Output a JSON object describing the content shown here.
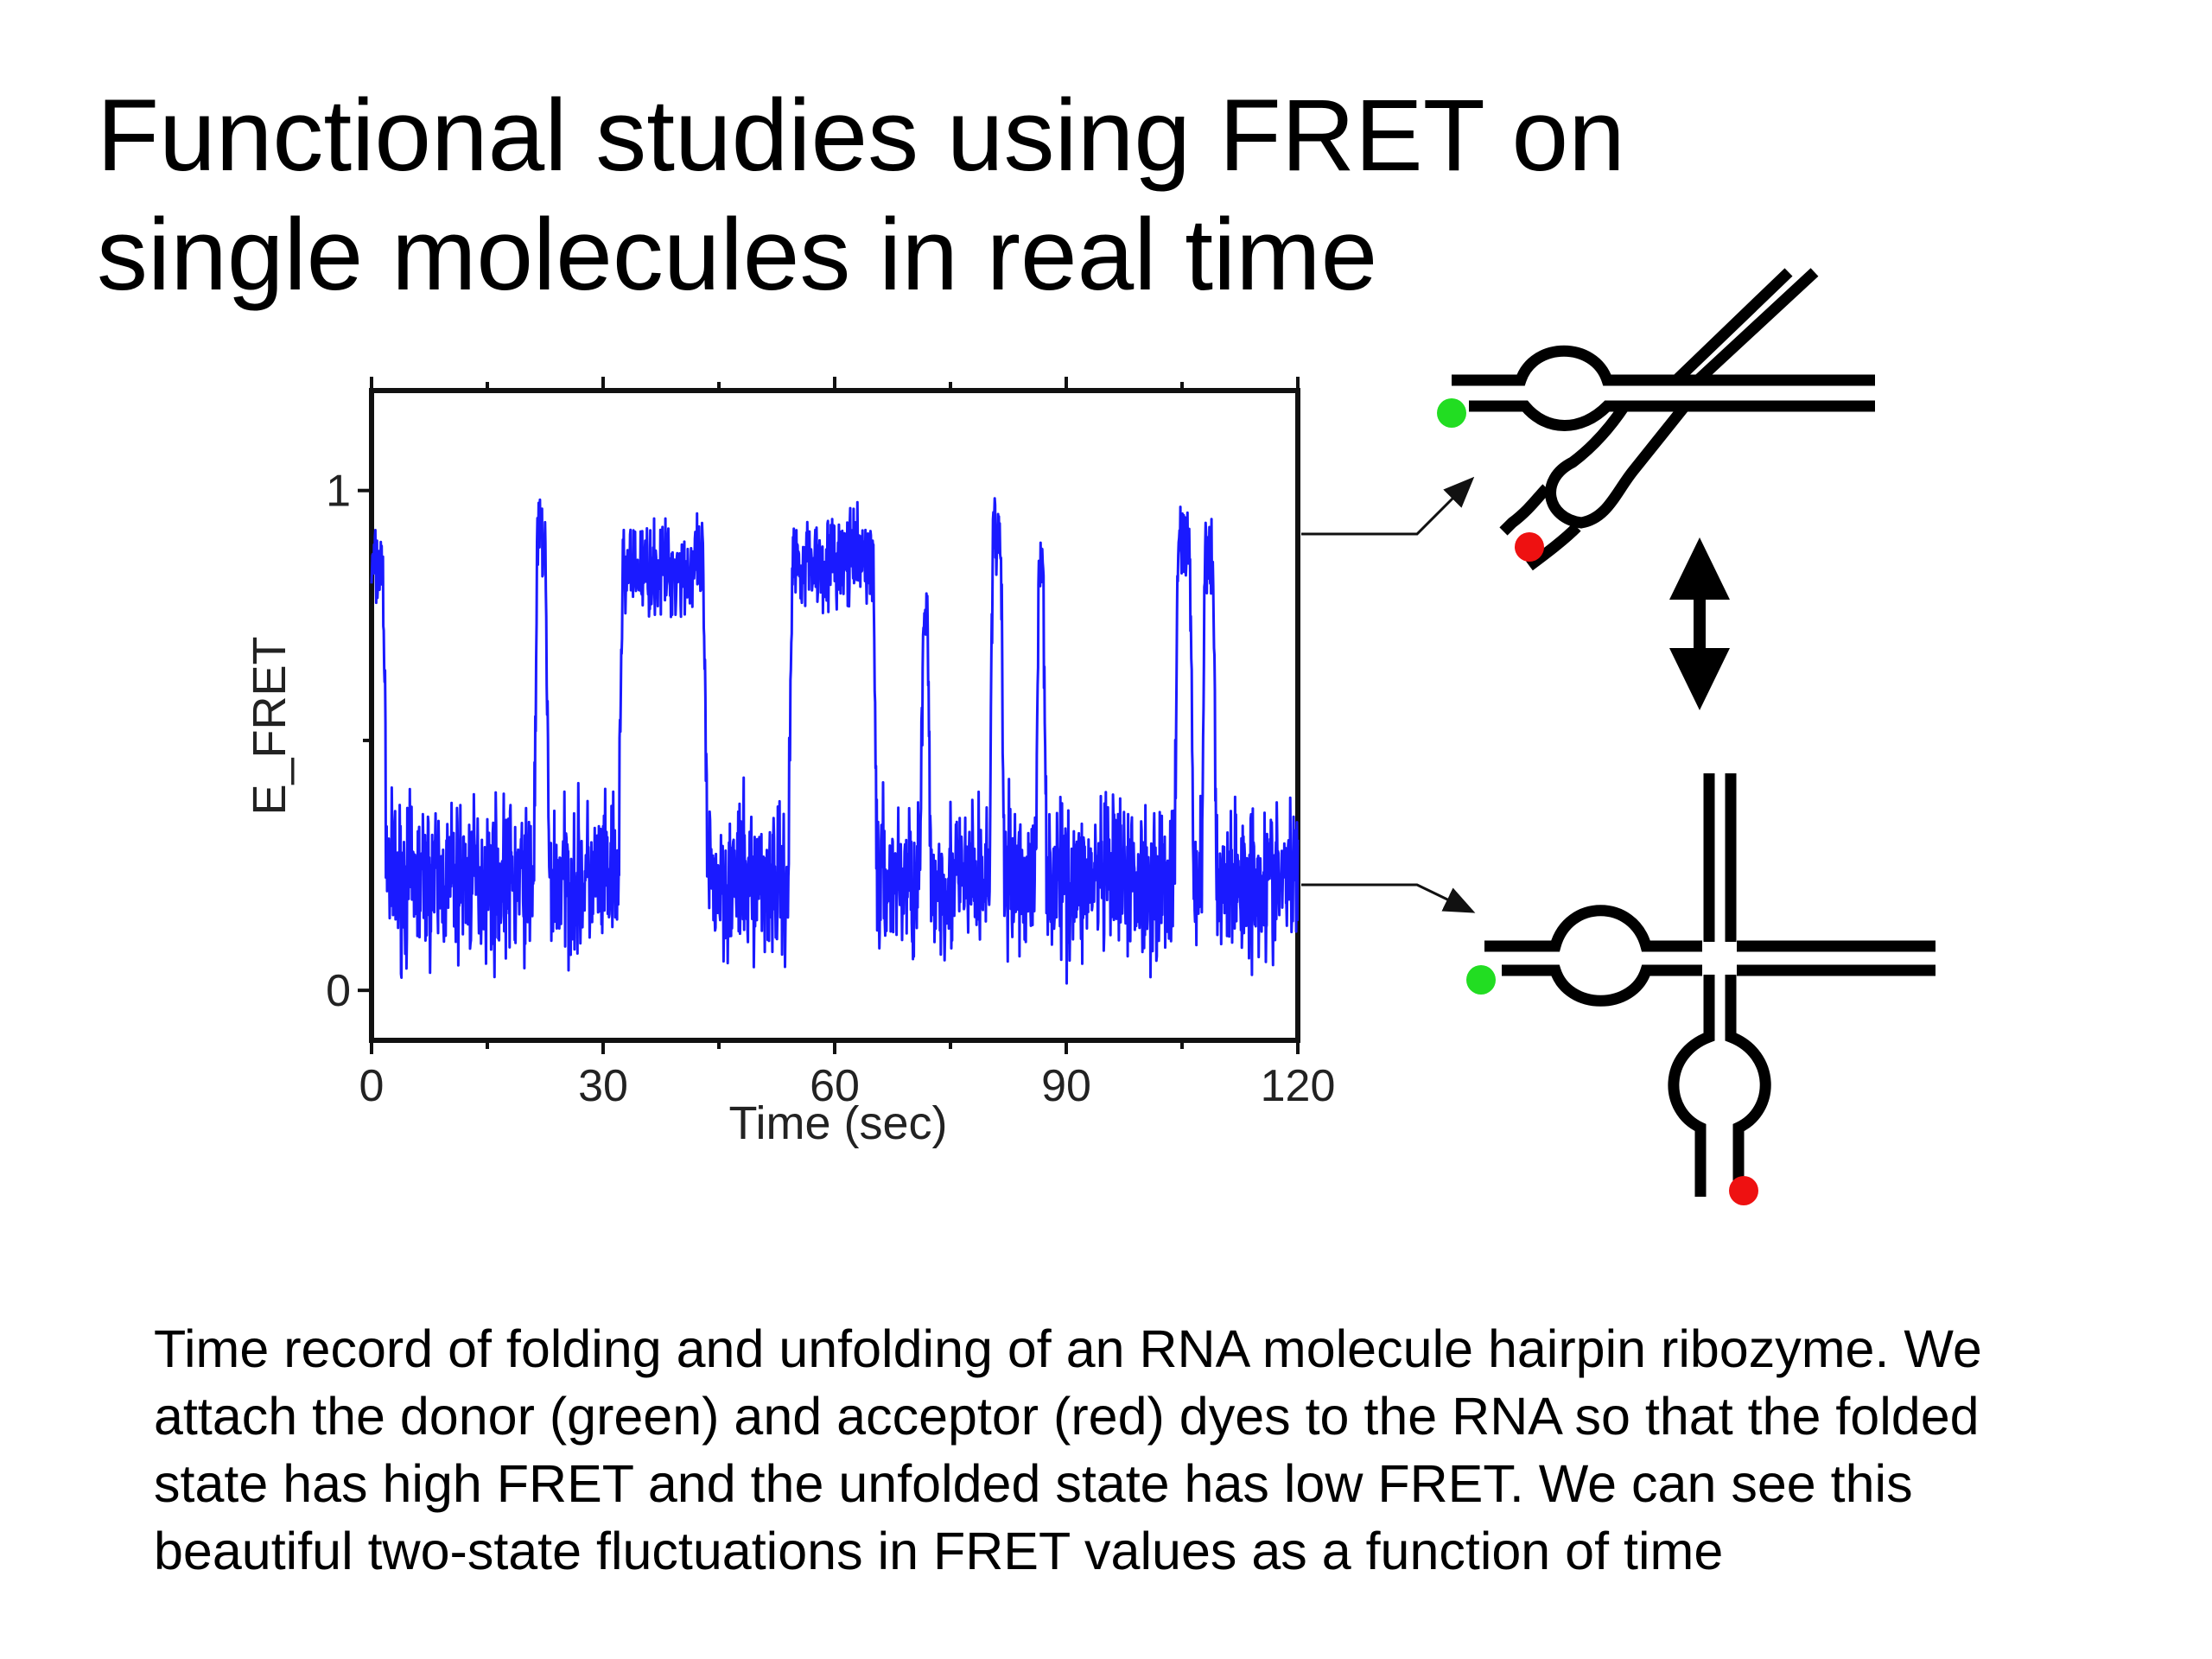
{
  "slide": {
    "title_lines": [
      "Functional studies using FRET on",
      "single molecules in real time"
    ],
    "caption_lines": [
      "Time record of folding and unfolding of an RNA molecule hairpin ribozyme. We",
      "attach the donor (green) and acceptor (red) dyes to the RNA so that the folded",
      "state has high FRET and the unfolded state has low FRET. We can see this",
      "beautiful two-state fluctuations in FRET values as a function of time"
    ]
  },
  "chart_data": {
    "type": "line",
    "title": "",
    "xlabel": "Time (sec)",
    "ylabel": "E_FRET",
    "xlim": [
      0,
      120
    ],
    "ylim": [
      -0.1,
      1.2
    ],
    "x_ticks": [
      0,
      30,
      60,
      90,
      120
    ],
    "y_ticks": [
      0,
      1
    ],
    "x_tick_labels": [
      "0",
      "30",
      "60",
      "90",
      "120"
    ],
    "y_tick_labels": [
      "0",
      "1"
    ],
    "grid": false,
    "series": [
      {
        "color": "#1a1aff",
        "high_level": 0.84,
        "low_level": 0.22,
        "x": [
          0,
          1.5,
          2,
          21,
          21.5,
          22.5,
          23,
          32,
          32.5,
          43,
          43.5,
          44.5,
          45,
          54,
          54.5,
          65,
          65.5,
          71,
          71.5,
          72,
          72.5,
          80,
          80.5,
          81.5,
          82,
          86,
          86.5,
          87,
          87.5,
          104,
          104.5,
          106,
          106.5,
          107.5,
          108,
          109,
          109.5,
          120
        ],
        "y": [
          0.84,
          0.84,
          0.22,
          0.22,
          0.9,
          0.9,
          0.22,
          0.22,
          0.84,
          0.84,
          0.22,
          0.22,
          0.22,
          0.22,
          0.86,
          0.86,
          0.22,
          0.22,
          0.72,
          0.72,
          0.22,
          0.22,
          0.9,
          0.9,
          0.22,
          0.22,
          0.86,
          0.86,
          0.22,
          0.22,
          0.9,
          0.9,
          0.22,
          0.22,
          0.86,
          0.86,
          0.22,
          0.22
        ]
      }
    ],
    "states": [
      {
        "state": "folded",
        "efret": 0.84
      },
      {
        "state": "unfolded",
        "efret": 0.22
      }
    ],
    "colors": {
      "donor": "#22dd22",
      "acceptor": "#ee1111",
      "trace": "#1a1aff"
    }
  }
}
